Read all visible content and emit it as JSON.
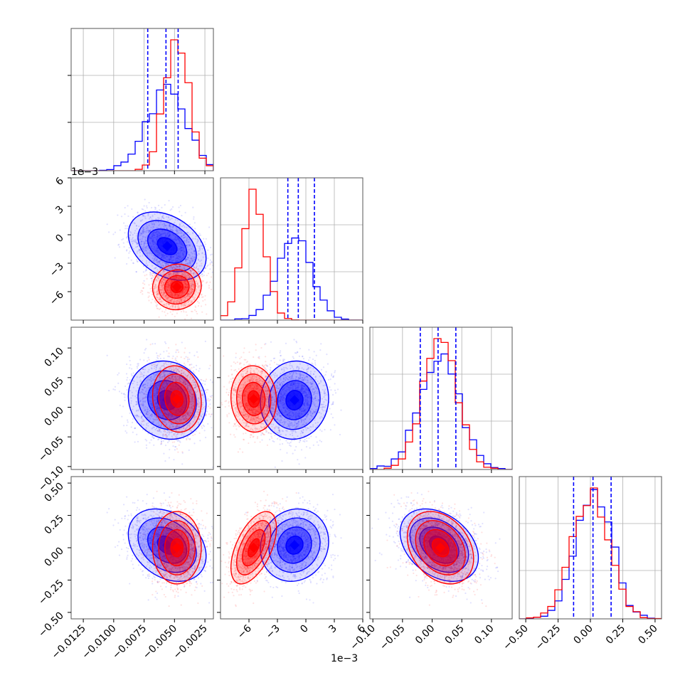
{
  "colors": {
    "series_a": "#0000ff",
    "series_b": "#ff0000",
    "grid": "#b0b0b0",
    "frame": "#555555"
  },
  "chart_data": {
    "type": "corner",
    "title": "",
    "parameters": [
      {
        "range": [
          -0.0135,
          -0.0018
        ],
        "ticks": [
          -0.0125,
          -0.01,
          -0.0075,
          -0.005,
          -0.0025
        ],
        "tick_labels": [
          "−0.0125",
          "−0.0100",
          "−0.0075",
          "−0.0050",
          "−0.0025"
        ],
        "offset_text": ""
      },
      {
        "range": [
          -0.009,
          0.006
        ],
        "ticks": [
          -0.006,
          -0.003,
          0.0,
          0.003,
          0.006
        ],
        "tick_labels": [
          "−6",
          "−3",
          "0",
          "3",
          "6"
        ],
        "offset_text": "1e−3"
      },
      {
        "range": [
          -0.105,
          0.135
        ],
        "ticks": [
          -0.1,
          -0.05,
          0.0,
          0.05,
          0.1
        ],
        "tick_labels": [
          "−0.10",
          "−0.05",
          "0.00",
          "0.05",
          "0.10"
        ],
        "offset_text": ""
      },
      {
        "range": [
          -0.55,
          0.55
        ],
        "ticks": [
          -0.5,
          -0.25,
          0.0,
          0.25,
          0.5
        ],
        "tick_labels": [
          "−0.50",
          "−0.25",
          "0.00",
          "0.25",
          "0.50"
        ],
        "offset_text": ""
      }
    ],
    "series": [
      {
        "color": "#0000ff",
        "means": [
          -0.0056,
          -0.0012,
          0.012,
          0.02
        ],
        "sds": [
          0.0016,
          0.0018,
          0.033,
          0.14
        ],
        "correlations": [
          [
            1,
            -0.35,
            -0.1,
            -0.3
          ],
          [
            -0.35,
            1,
            0.05,
            0.1
          ],
          [
            -0.1,
            0.05,
            1,
            -0.35
          ],
          [
            -0.3,
            0.1,
            -0.35,
            1
          ]
        ],
        "quantiles": [
          [
            -0.0072,
            -0.0057,
            -0.0047
          ],
          [
            -0.0019,
            -0.0008,
            0.0009
          ],
          [
            -0.02,
            0.01,
            0.04
          ],
          [
            -0.13,
            0.02,
            0.16
          ]
        ]
      },
      {
        "color": "#ff0000",
        "means": [
          -0.0048,
          -0.0055,
          0.014,
          0.0
        ],
        "sds": [
          0.001,
          0.0012,
          0.028,
          0.14
        ],
        "correlations": [
          [
            1,
            0.05,
            -0.1,
            0.0
          ],
          [
            0.05,
            1,
            -0.05,
            0.55
          ],
          [
            -0.1,
            -0.05,
            1,
            -0.3
          ],
          [
            0.0,
            0.55,
            -0.3,
            1
          ]
        ],
        "quantiles": null
      }
    ],
    "grid": true
  }
}
